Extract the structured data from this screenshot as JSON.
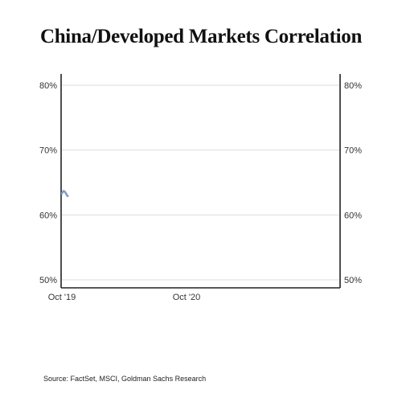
{
  "title": "China/Developed Markets Correlation",
  "source": "Source: FactSet, MSCI, Goldman Sachs Research",
  "colors": {
    "line": "#7f9fc2",
    "axis": "#222222",
    "grid": "#dddddd"
  },
  "chart_data": {
    "type": "line",
    "title": "China/Developed Markets Correlation",
    "xlabel": "",
    "ylabel": "",
    "ylim": [
      0.495,
      0.815
    ],
    "y_ticks": [
      0.5,
      0.6,
      0.7,
      0.8
    ],
    "y_tick_labels": [
      "50%",
      "60%",
      "70%",
      "80%"
    ],
    "x_range": [
      "2019-10-01",
      "2021-12-31"
    ],
    "x_ticks": [
      "2019-10-01",
      "2020-10-01"
    ],
    "x_tick_labels": [
      "Oct '19",
      "Oct '20"
    ],
    "grid": true,
    "dual_y_axis": true,
    "series": [
      {
        "color": "#7f9fc2",
        "x": [
          "2019-10-01",
          "2019-10-03",
          "2019-10-06",
          "2019-10-09",
          "2019-10-12",
          "2019-10-15",
          "2019-10-18"
        ],
        "y": [
          0.633,
          0.635,
          0.637,
          0.636,
          0.634,
          0.631,
          0.629
        ]
      }
    ]
  }
}
